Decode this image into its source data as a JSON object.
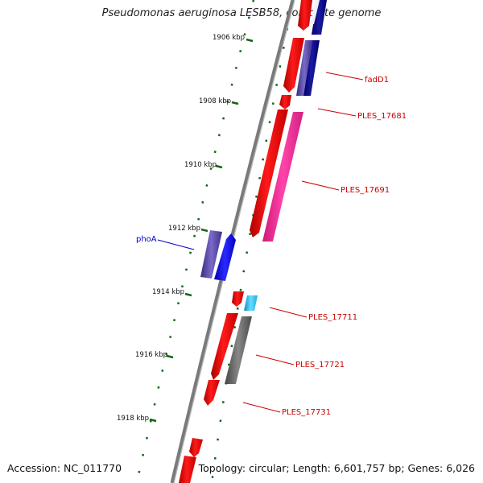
{
  "map": {
    "title": "Pseudomonas aeruginosa LESB58, complete genome",
    "accession": "Accession: NC_011770",
    "summary": "Topology: circular; Length: 6,601,757 bp; Genes: 6,026"
  },
  "ticks": [
    "1906 kbp",
    "1908 kbp",
    "1910 kbp",
    "1912 kbp",
    "1914 kbp",
    "1916 kbp",
    "1918 kbp"
  ],
  "gene_labels": [
    {
      "text": "fadD1",
      "color": "#cc0000"
    },
    {
      "text": "PLES_17681",
      "color": "#cc0000"
    },
    {
      "text": "PLES_17691",
      "color": "#cc0000"
    },
    {
      "text": "phoA",
      "color": "#0000cc"
    },
    {
      "text": "PLES_17711",
      "color": "#cc0000"
    },
    {
      "text": "PLES_17721",
      "color": "#cc0000"
    },
    {
      "text": "PLES_17731",
      "color": "#cc0000"
    }
  ],
  "colors": {
    "cds_forward": "#ff0000",
    "feature_magenta": "#ff3399",
    "feature_navy": "#0a0a8a",
    "feature_purple": "#5a4aa8",
    "feature_blue": "#0000ff",
    "feature_cyan": "#33ccff",
    "feature_gray": "#6a6a6a",
    "backbone": "#888888",
    "tick_marks": "#116611"
  }
}
